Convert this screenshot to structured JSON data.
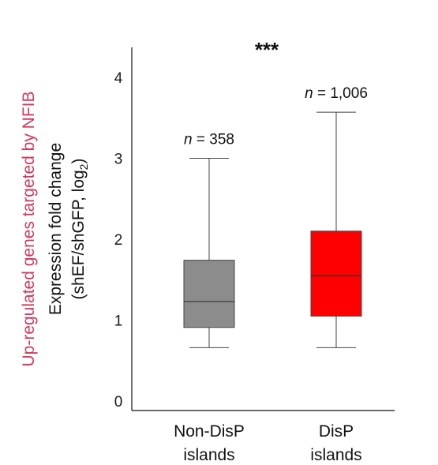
{
  "outer_label": "Up-regulated genes targeted by NFIB",
  "chart_data": {
    "type": "box",
    "ylabel_line1": "Expression fold change",
    "ylabel_line2_prefix": "(shEF/shGFP, log",
    "ylabel_line2_sub": "2",
    "ylabel_line2_suffix": ")",
    "ylim": [
      0,
      4.3
    ],
    "yticks": [
      0,
      1,
      2,
      3,
      4
    ],
    "significance": "***",
    "categories": [
      {
        "line1": "Non-DisP",
        "line2": "islands",
        "n_prefix": "n",
        "n_suffix": " = 358",
        "color": "#8c8c8c",
        "whisker_low": 0.66,
        "q1": 0.91,
        "median": 1.23,
        "q3": 1.74,
        "whisker_high": 3.0
      },
      {
        "line1": "DisP",
        "line2": "islands",
        "n_prefix": "n",
        "n_suffix": " = 1,006",
        "color": "#ff0000",
        "whisker_low": 0.66,
        "q1": 1.05,
        "median": 1.55,
        "q3": 2.1,
        "whisker_high": 3.57
      }
    ]
  }
}
